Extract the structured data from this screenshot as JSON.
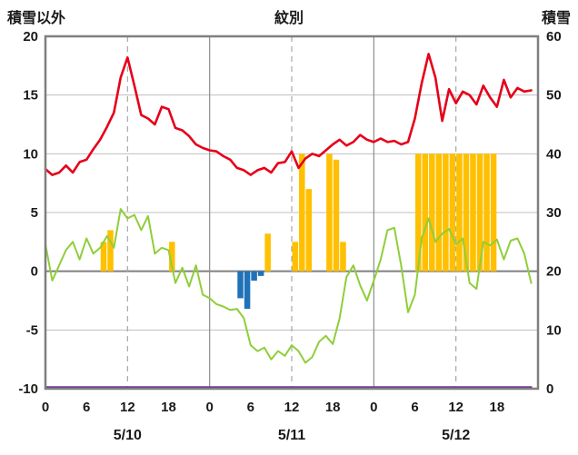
{
  "chart_data": {
    "type": "line",
    "title": "紋別",
    "left_axis": {
      "label": "積雪以外",
      "min": -10,
      "max": 20,
      "ticks": [
        20,
        15,
        10,
        5,
        0,
        -5,
        -10
      ]
    },
    "right_axis": {
      "label": "積雪",
      "min": 0,
      "max": 60,
      "ticks": [
        60,
        50,
        40,
        30,
        20,
        10,
        0
      ]
    },
    "x": {
      "total_hours": 72,
      "hours_per_day": 24,
      "tick_hours": [
        0,
        6,
        12,
        18
      ],
      "tick_labels": [
        "0",
        "6",
        "12",
        "18"
      ],
      "day_labels": [
        "5/10",
        "5/11",
        "5/12"
      ],
      "solid_grid_hours": [
        24,
        48
      ],
      "dashed_grid_hours": [
        12,
        36,
        60
      ]
    },
    "grid": {
      "on": true,
      "line_color": "#bfbfbf",
      "zero_line_color": "#7f7f7f",
      "day_line_color": "#8c8c8c",
      "dashed_color": "#a6a6a6",
      "border_color": "#7f7f7f"
    },
    "series": [
      {
        "name": "orange-bars",
        "type": "bar",
        "axis": "left",
        "color": "#ffc000",
        "values": [
          0,
          0,
          0,
          0,
          0,
          0,
          0,
          0,
          2.5,
          3.5,
          0,
          0,
          0,
          0,
          0,
          0,
          0,
          0,
          2.5,
          0,
          0,
          0,
          0,
          0,
          0,
          0,
          0,
          0,
          0,
          0,
          0,
          0,
          3.2,
          0,
          0,
          0,
          2.5,
          10,
          7,
          0,
          0,
          10,
          9.5,
          2.5,
          0,
          0,
          0,
          0,
          0,
          0,
          0,
          0,
          0,
          0,
          10,
          10,
          10,
          10,
          10,
          10,
          10,
          10,
          10,
          10,
          10,
          10,
          0,
          0,
          0,
          0,
          0,
          0
        ]
      },
      {
        "name": "blue-bars",
        "type": "bar",
        "axis": "left",
        "color": "#2072b8",
        "values": [
          0,
          0,
          0,
          0,
          0,
          0,
          0,
          0,
          0,
          0,
          0,
          0,
          0,
          0,
          0,
          0,
          0,
          0,
          0,
          0,
          0,
          0,
          0,
          0,
          0,
          0,
          0,
          0,
          -2.3,
          -3.2,
          -0.8,
          -0.4,
          0,
          0,
          0,
          0,
          0,
          0,
          0,
          0,
          0,
          0,
          0,
          0,
          0,
          0,
          0,
          0,
          0,
          0,
          0,
          0,
          0,
          0,
          0,
          0,
          0,
          0,
          0,
          0,
          0,
          0,
          0,
          0,
          0,
          0,
          0,
          0,
          0,
          0,
          0,
          0
        ]
      },
      {
        "name": "green-line",
        "type": "line",
        "axis": "left",
        "color": "#8fce3a",
        "width": 2,
        "values": [
          2.3,
          -0.8,
          0.5,
          1.8,
          2.5,
          1.0,
          2.8,
          1.5,
          2.0,
          3.0,
          2.0,
          5.3,
          4.5,
          4.8,
          3.5,
          4.7,
          1.5,
          2.0,
          1.8,
          -1.0,
          0.3,
          -1.3,
          0.5,
          -2.0,
          -2.3,
          -2.8,
          -3.0,
          -3.3,
          -3.2,
          -4.0,
          -6.3,
          -6.8,
          -6.5,
          -7.5,
          -6.8,
          -7.2,
          -6.3,
          -6.8,
          -7.8,
          -7.3,
          -6.0,
          -5.5,
          -6.2,
          -4.0,
          -0.5,
          0.5,
          -1.2,
          -2.5,
          -0.8,
          1.0,
          3.5,
          3.7,
          0.5,
          -3.5,
          -2.0,
          2.8,
          4.5,
          2.5,
          3.2,
          3.6,
          2.3,
          2.8,
          -1.0,
          -1.5,
          2.5,
          2.2,
          2.7,
          1.0,
          2.6,
          2.8,
          1.5,
          -1.0
        ]
      },
      {
        "name": "temperature-line",
        "type": "line",
        "axis": "left",
        "color": "#e60019",
        "width": 2.6,
        "values": [
          8.7,
          8.2,
          8.4,
          9.0,
          8.4,
          9.3,
          9.5,
          10.4,
          11.2,
          12.3,
          13.5,
          16.5,
          18.2,
          15.8,
          13.3,
          13.0,
          12.5,
          14.0,
          13.8,
          12.2,
          12.0,
          11.5,
          10.8,
          10.5,
          10.3,
          10.2,
          9.8,
          9.5,
          8.8,
          8.6,
          8.2,
          8.6,
          8.8,
          8.4,
          9.2,
          9.3,
          10.2,
          8.8,
          9.6,
          10.0,
          9.8,
          10.3,
          10.8,
          11.2,
          10.7,
          11.0,
          11.6,
          11.2,
          11.0,
          11.3,
          11.0,
          11.1,
          10.8,
          11.0,
          13.0,
          16.0,
          18.5,
          16.5,
          12.8,
          15.5,
          14.3,
          15.3,
          15.0,
          14.2,
          15.8,
          14.8,
          14.0,
          16.3,
          14.8,
          15.6,
          15.3,
          15.4
        ]
      },
      {
        "name": "snow-depth-line",
        "type": "line",
        "axis": "right",
        "color": "#7030a0",
        "width": 2.5,
        "values": [
          0,
          0,
          0,
          0,
          0,
          0,
          0,
          0,
          0,
          0,
          0,
          0,
          0,
          0,
          0,
          0,
          0,
          0,
          0,
          0,
          0,
          0,
          0,
          0,
          0,
          0,
          0,
          0,
          0,
          0,
          0,
          0,
          0,
          0,
          0,
          0,
          0,
          0,
          0,
          0,
          0,
          0,
          0,
          0,
          0,
          0,
          0,
          0,
          0,
          0,
          0,
          0,
          0,
          0,
          0,
          0,
          0,
          0,
          0,
          0,
          0,
          0,
          0,
          0,
          0,
          0,
          0,
          0,
          0,
          0,
          0,
          0
        ]
      }
    ]
  }
}
